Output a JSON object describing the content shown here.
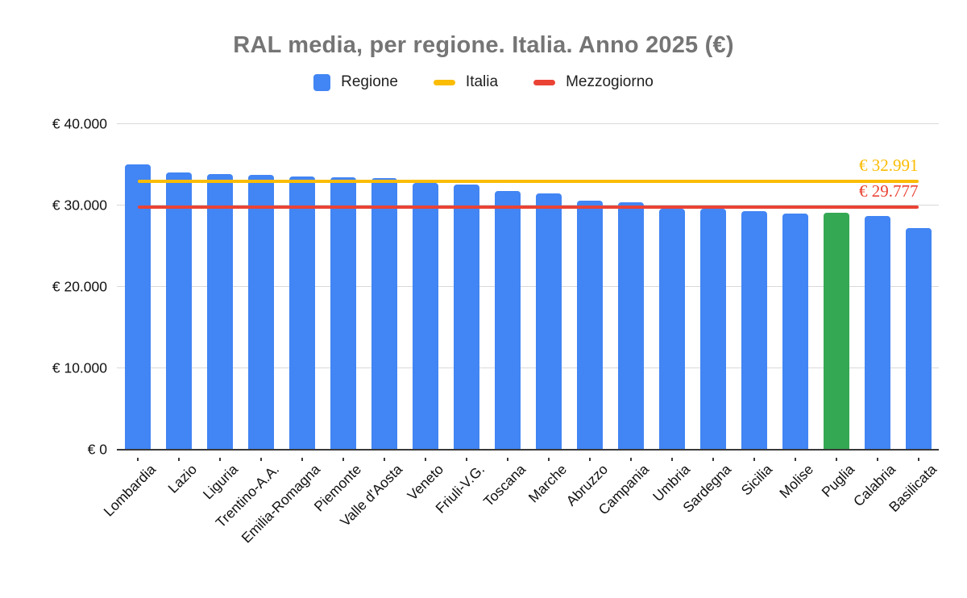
{
  "title": "RAL media, per regione. Italia. Anno 2025 (€)",
  "legend": [
    {
      "label": "Regione",
      "swatch": "square",
      "color": "#4285F4"
    },
    {
      "label": "Italia",
      "swatch": "dash",
      "color": "#FBBC04"
    },
    {
      "label": "Mezzogiorno",
      "swatch": "dash",
      "color": "#EA4335"
    }
  ],
  "chart_data": {
    "type": "bar",
    "title": "RAL media, per regione. Italia. Anno 2025 (€)",
    "categories": [
      "Lombardia",
      "Lazio",
      "Liguria",
      "Trentino-A.A.",
      "Emilia-Romagna",
      "Piemonte",
      "Valle d'Aosta",
      "Veneto",
      "Friuli-V.G.",
      "Toscana",
      "Marche",
      "Abruzzo",
      "Campania",
      "Umbria",
      "Sardegna",
      "Sicilia",
      "Molise",
      "Puglia",
      "Calabria",
      "Basilicata"
    ],
    "values": [
      35050,
      34100,
      33900,
      33750,
      33600,
      33500,
      33350,
      32800,
      32600,
      31800,
      31500,
      30550,
      30400,
      29650,
      29600,
      29300,
      29050,
      29100,
      28700,
      27250
    ],
    "series_name": "Regione",
    "bar_color": "#4285F4",
    "highlight_category": "Puglia",
    "highlight_color": "#34A853",
    "reference_lines": [
      {
        "name": "Italia",
        "value": 32991,
        "label": "€ 32.991",
        "color": "#FBBC04"
      },
      {
        "name": "Mezzogiorno",
        "value": 29777,
        "label": "€ 29.777",
        "color": "#EA4335"
      }
    ],
    "ylim": [
      0,
      40000
    ],
    "yticks": [
      {
        "value": 0,
        "label": "€ 0"
      },
      {
        "value": 10000,
        "label": "€ 10.000"
      },
      {
        "value": 20000,
        "label": "€ 20.000"
      },
      {
        "value": 30000,
        "label": "€ 30.000"
      },
      {
        "value": 40000,
        "label": "€ 40.000"
      }
    ],
    "xlabel": "",
    "ylabel": "",
    "grid": true,
    "legend_position": "top",
    "x_label_rotation_deg": -45
  },
  "colors": {
    "title": "#757575",
    "grid": "#d9d9d9",
    "axis": "#3a3a3a",
    "tick_text": "#111111"
  }
}
